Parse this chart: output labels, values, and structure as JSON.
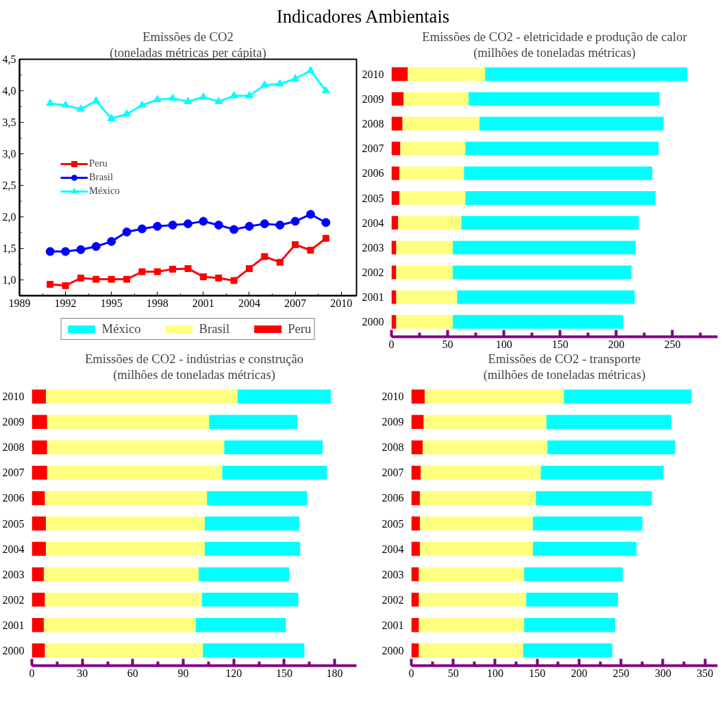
{
  "chart_data": [
    {
      "type": "line",
      "title": "Emissões de CO2",
      "subtitle": "(toneladas métricas per cápita)",
      "annotations": [
        "Indicadores Ambientais"
      ],
      "x": [
        1991,
        1992,
        1993,
        1994,
        1995,
        1996,
        1997,
        1998,
        1999,
        2000,
        2001,
        2002,
        2003,
        2004,
        2005,
        2006,
        2007,
        2008,
        2009
      ],
      "xlim": [
        1989,
        2011
      ],
      "xticks": [
        1989,
        {
          "value": 1990.5,
          "label": null
        },
        1992,
        {
          "value": 1993.5,
          "label": null
        },
        1995,
        {
          "value": 1996.5,
          "label": null
        },
        1998,
        {
          "value": 1999.5,
          "label": null
        },
        2001,
        {
          "value": 2002.5,
          "label": null
        },
        2004,
        {
          "value": 2005.5,
          "label": null
        },
        2007,
        {
          "value": 2008.5,
          "label": null
        },
        2010
      ],
      "ylim": [
        0.75,
        4.5
      ],
      "yticks": [
        {
          "value": 1,
          "label": "1,0"
        },
        {
          "value": 1.25,
          "label": null
        },
        {
          "value": 1.5,
          "label": "1,5"
        },
        {
          "value": 1.75,
          "label": null
        },
        {
          "value": 2,
          "label": "2,0"
        },
        {
          "value": 2.25,
          "label": null
        },
        {
          "value": 2.5,
          "label": "2,5"
        },
        {
          "value": 2.75,
          "label": null
        },
        {
          "value": 3,
          "label": "3,0"
        },
        {
          "value": 3.25,
          "label": null
        },
        {
          "value": 3.5,
          "label": "3,5"
        },
        {
          "value": 3.75,
          "label": null
        },
        {
          "value": 4,
          "label": "4,0"
        },
        {
          "value": 4.25,
          "label": null
        },
        {
          "value": 4.5,
          "label": "4,5"
        }
      ],
      "legend": "left",
      "grid": false,
      "series": [
        {
          "name": "Peru",
          "color": "#ff0000",
          "marker": "square",
          "values": [
            0.93,
            0.91,
            1.03,
            1.01,
            1.01,
            1.01,
            1.13,
            1.13,
            1.17,
            1.18,
            1.05,
            1.03,
            0.99,
            1.18,
            1.37,
            1.28,
            1.56,
            1.47,
            1.66
          ]
        },
        {
          "name": "Brasil",
          "color": "#0000ff",
          "marker": "circle",
          "values": [
            1.45,
            1.45,
            1.48,
            1.53,
            1.61,
            1.76,
            1.81,
            1.85,
            1.87,
            1.89,
            1.93,
            1.87,
            1.8,
            1.85,
            1.89,
            1.87,
            1.93,
            2.04,
            1.91
          ]
        },
        {
          "name": "México",
          "color": "#00ffff",
          "marker": "triangle",
          "values": [
            3.8,
            3.77,
            3.71,
            3.84,
            3.56,
            3.63,
            3.77,
            3.86,
            3.88,
            3.83,
            3.9,
            3.83,
            3.92,
            3.92,
            4.09,
            4.11,
            4.19,
            4.32,
            4.0
          ]
        }
      ]
    },
    {
      "type": "bar",
      "orientation": "horizontal",
      "stacked": true,
      "title": "Emissões de CO2 - eletricidade e produção de calor",
      "subtitle": "(milhões de toneladas métricas)",
      "categories": [
        "2010",
        "2009",
        "2008",
        "2007",
        "2006",
        "2005",
        "2004",
        "2003",
        "2002",
        "2001",
        "2000"
      ],
      "xlim": [
        0,
        290
      ],
      "xticks": [
        0,
        {
          "value": 25,
          "label": null
        },
        50,
        {
          "value": 75,
          "label": null
        },
        100,
        {
          "value": 125,
          "label": null
        },
        150,
        {
          "value": 175,
          "label": null
        },
        200,
        {
          "value": 225,
          "label": null
        },
        250,
        {
          "value": 275,
          "label": null
        }
      ],
      "legend": "bottom left",
      "series": [
        {
          "name": "Peru",
          "color": "#ff0000",
          "values": [
            14.6,
            10.9,
            9.8,
            7.9,
            7.1,
            7.1,
            6.0,
            4.3,
            4.3,
            4.3,
            4.3
          ]
        },
        {
          "name": "Brasil",
          "color": "#ffff80",
          "values": [
            68.7,
            57.8,
            68.5,
            57.8,
            57.5,
            58.6,
            56.1,
            50.3,
            50.3,
            54.1,
            50.3
          ]
        },
        {
          "name": "México",
          "color": "#00ffff",
          "values": [
            179.8,
            169.7,
            163.8,
            171.9,
            167.4,
            169.3,
            157.9,
            162.7,
            159.0,
            158.0,
            151.5
          ]
        }
      ]
    },
    {
      "type": "bar",
      "orientation": "horizontal",
      "stacked": true,
      "title": "Emissões de CO2 - indústrias e construção",
      "subtitle": "(milhões de toneladas métricas)",
      "categories": [
        "2010",
        "2009",
        "2008",
        "2007",
        "2006",
        "2005",
        "2004",
        "2003",
        "2002",
        "2001",
        "2000"
      ],
      "xlim": [
        0,
        193
      ],
      "xticks": [
        0,
        {
          "value": 15,
          "label": null
        },
        30,
        {
          "value": 45,
          "label": null
        },
        60,
        {
          "value": 75,
          "label": null
        },
        90,
        {
          "value": 105,
          "label": null
        },
        120,
        {
          "value": 135,
          "label": null
        },
        150,
        {
          "value": 165,
          "label": null
        },
        180
      ],
      "series": [
        {
          "color": "#ff0000",
          "values": [
            8.4,
            9.1,
            9.1,
            9.1,
            7.8,
            8.4,
            8.4,
            7.1,
            7.8,
            7.1,
            7.8
          ]
        },
        {
          "color": "#ffff80",
          "values": [
            113.9,
            96.3,
            105.3,
            104.1,
            96.3,
            94.4,
            94.4,
            92.1,
            93.3,
            90.3,
            93.9
          ]
        },
        {
          "color": "#00ffff",
          "values": [
            55.5,
            52.4,
            58.5,
            62.2,
            59.6,
            56.1,
            56.7,
            53.7,
            57.3,
            53.6,
            60.3
          ]
        }
      ]
    },
    {
      "type": "bar",
      "orientation": "horizontal",
      "stacked": true,
      "title": "Emissões de CO2 - transporte",
      "subtitle": "(milhões de toneladas métricas)",
      "categories": [
        "2010",
        "2009",
        "2008",
        "2007",
        "2006",
        "2005",
        "2004",
        "2003",
        "2002",
        "2001",
        "2000"
      ],
      "xlim": [
        0,
        365
      ],
      "xticks": [
        0,
        {
          "value": 25,
          "label": null
        },
        50,
        {
          "value": 75,
          "label": null
        },
        100,
        {
          "value": 125,
          "label": null
        },
        150,
        {
          "value": 175,
          "label": null
        },
        200,
        {
          "value": 225,
          "label": null
        },
        250,
        {
          "value": 275,
          "label": null
        },
        300,
        {
          "value": 325,
          "label": null
        },
        350
      ],
      "series": [
        {
          "color": "#ff0000",
          "values": [
            16.1,
            14.8,
            13.7,
            11.3,
            10.2,
            10.2,
            10.2,
            9.1,
            9.1,
            9.1,
            9.1
          ]
        },
        {
          "color": "#ffff80",
          "values": [
            165.8,
            146.3,
            148.5,
            143.1,
            138.3,
            134.8,
            134.8,
            125.4,
            127.8,
            125.4,
            124.3
          ]
        },
        {
          "color": "#00ffff",
          "values": [
            152.2,
            148.8,
            152.6,
            146.4,
            138.3,
            130.5,
            123.5,
            117.6,
            109.5,
            108.4,
            106.3
          ]
        }
      ]
    }
  ]
}
